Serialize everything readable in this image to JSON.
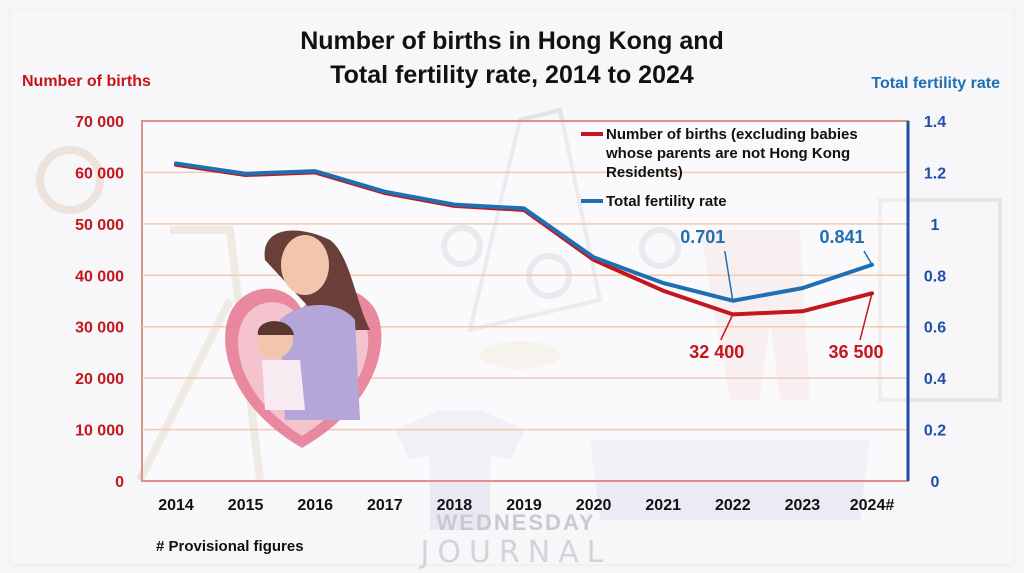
{
  "chart_data": {
    "type": "line",
    "title_line1": "Number of births in Hong Kong and",
    "title_line2": "Total fertility rate, 2014 to 2024",
    "ylabel_left": "Number of births",
    "ylabel_right": "Total fertility rate",
    "categories": [
      "2014",
      "2015",
      "2016",
      "2017",
      "2018",
      "2019",
      "2020",
      "2021",
      "2022",
      "2023",
      "2024#"
    ],
    "ylim_left": [
      0,
      70000
    ],
    "ylim_right": [
      0,
      1.4
    ],
    "yticks_left": [
      {
        "value": 0,
        "label": "0"
      },
      {
        "value": 10000,
        "label": "10 000"
      },
      {
        "value": 20000,
        "label": "20 000"
      },
      {
        "value": 30000,
        "label": "30 000"
      },
      {
        "value": 40000,
        "label": "40 000"
      },
      {
        "value": 50000,
        "label": "50 000"
      },
      {
        "value": 60000,
        "label": "60 000"
      },
      {
        "value": 70000,
        "label": "70 000"
      }
    ],
    "yticks_right": [
      {
        "value": 0,
        "label": "0"
      },
      {
        "value": 0.2,
        "label": "0.2"
      },
      {
        "value": 0.4,
        "label": "0.4"
      },
      {
        "value": 0.6,
        "label": "0.6"
      },
      {
        "value": 0.8,
        "label": "0.8"
      },
      {
        "value": 1.0,
        "label": "1"
      },
      {
        "value": 1.2,
        "label": "1.2"
      },
      {
        "value": 1.4,
        "label": "1.4"
      }
    ],
    "grid": true,
    "legend_position": "top-right",
    "series": [
      {
        "name": "Number of births (excluding babies whose parents are not Hong Kong Residents)",
        "legend_lines": [
          "Number of births (excluding babies",
          "whose parents are not Hong Kong",
          "Residents)"
        ],
        "axis": "left",
        "color": "#c4161c",
        "values": [
          61500,
          59500,
          60000,
          56000,
          53500,
          52700,
          43000,
          37000,
          32400,
          33000,
          36500
        ]
      },
      {
        "name": "Total fertility rate",
        "legend_lines": [
          "Total fertility rate"
        ],
        "axis": "right",
        "color": "#1f6fb5",
        "values": [
          1.235,
          1.195,
          1.205,
          1.125,
          1.075,
          1.06,
          0.87,
          0.77,
          0.701,
          0.75,
          0.841
        ]
      }
    ],
    "annotations": [
      {
        "series": 0,
        "index": 8,
        "text": "32 400"
      },
      {
        "series": 0,
        "index": 10,
        "text": "36 500"
      },
      {
        "series": 1,
        "index": 8,
        "text": "0.701"
      },
      {
        "series": 1,
        "index": 10,
        "text": "0.841"
      }
    ],
    "footnote": "# Provisional figures"
  },
  "watermark": {
    "line1": "WEDNESDAY",
    "line2": "JOURNAL"
  },
  "colors": {
    "births": "#c4161c",
    "fertility": "#1f6fb5",
    "grid": "#f4c9b0",
    "frame": "#e0908a"
  }
}
